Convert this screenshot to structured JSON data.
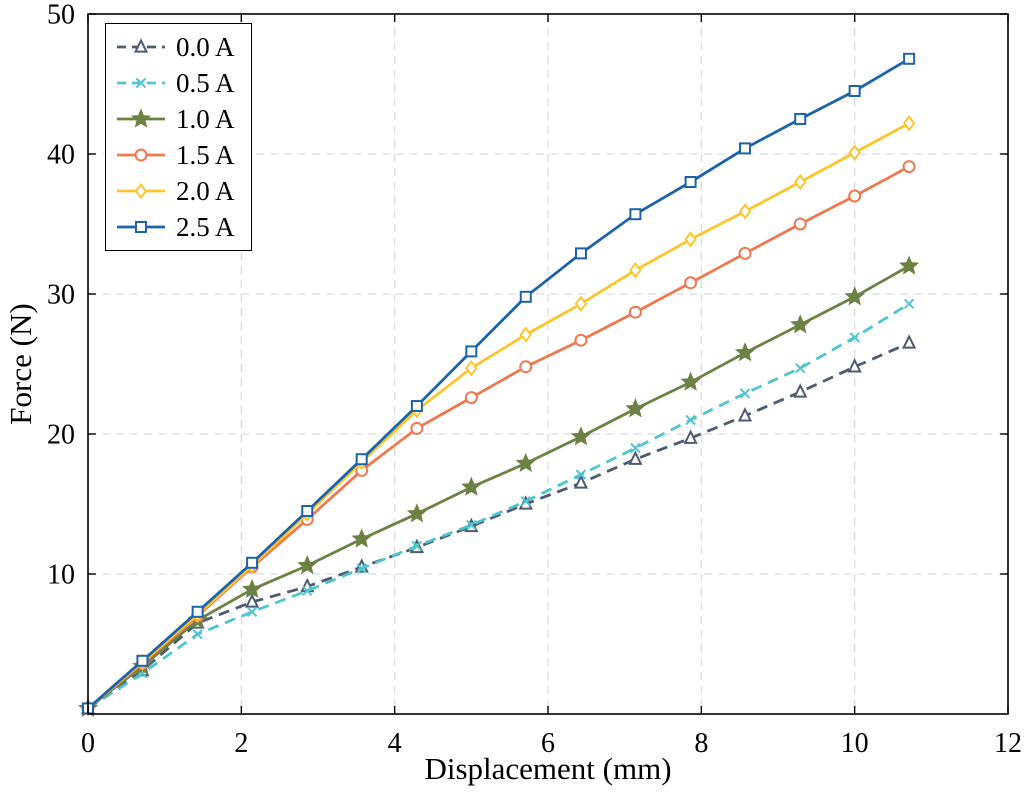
{
  "figure": {
    "background": "#ffffff",
    "axis_color": "#000000",
    "grid_color": "#dcdcdc"
  },
  "chart_data": {
    "type": "line",
    "title": "",
    "xlabel": "Displacement (mm)",
    "ylabel": "Force (N)",
    "xlim": [
      0,
      12
    ],
    "ylim": [
      0,
      50
    ],
    "xticks": [
      0,
      2,
      4,
      6,
      8,
      10,
      12
    ],
    "yticks": [
      10,
      20,
      30,
      40,
      50
    ],
    "grid": true,
    "grid_style": "dashed",
    "legend_position": "top-left",
    "x": [
      0,
      0.71,
      1.43,
      2.14,
      2.86,
      3.57,
      4.29,
      5.0,
      5.71,
      6.43,
      7.14,
      7.86,
      8.57,
      9.29,
      10.0,
      10.71
    ],
    "series": [
      {
        "name": "0.0 A",
        "color": "#4D5A71",
        "line": "dashed",
        "marker": "triangle",
        "values": [
          0.4,
          3.1,
          6.5,
          8.0,
          9.1,
          10.5,
          11.9,
          13.4,
          15.0,
          16.5,
          18.2,
          19.7,
          21.3,
          23.0,
          24.8,
          26.5
        ]
      },
      {
        "name": "0.5 A",
        "color": "#4EC5CF",
        "line": "dashed",
        "marker": "x",
        "values": [
          0.4,
          2.9,
          5.7,
          7.3,
          8.8,
          10.4,
          12.0,
          13.5,
          15.2,
          17.1,
          19.0,
          21.0,
          22.9,
          24.7,
          26.9,
          29.3
        ]
      },
      {
        "name": "1.0 A",
        "color": "#6C8144",
        "line": "solid",
        "marker": "star",
        "values": [
          0.4,
          3.4,
          6.7,
          8.9,
          10.6,
          12.5,
          14.3,
          16.2,
          17.9,
          19.8,
          21.8,
          23.7,
          25.8,
          27.8,
          29.8,
          32.0
        ]
      },
      {
        "name": "1.5 A",
        "color": "#F07850",
        "line": "solid",
        "marker": "circle",
        "values": [
          0.4,
          3.6,
          7.0,
          10.5,
          13.9,
          17.4,
          20.4,
          22.6,
          24.8,
          26.7,
          28.7,
          30.8,
          32.9,
          35.0,
          37.0,
          39.1
        ]
      },
      {
        "name": "2.0 A",
        "color": "#FCC52D",
        "line": "solid",
        "marker": "diamond",
        "values": [
          0.4,
          3.7,
          7.1,
          10.6,
          14.3,
          18.0,
          21.7,
          24.7,
          27.1,
          29.3,
          31.7,
          33.9,
          35.9,
          38.0,
          40.1,
          42.2
        ]
      },
      {
        "name": "2.5 A",
        "color": "#1D63A9",
        "line": "solid",
        "marker": "square",
        "values": [
          0.4,
          3.8,
          7.3,
          10.8,
          14.5,
          18.2,
          22.0,
          25.9,
          29.8,
          32.9,
          35.7,
          38.0,
          40.4,
          42.5,
          44.5,
          46.8
        ]
      }
    ]
  }
}
